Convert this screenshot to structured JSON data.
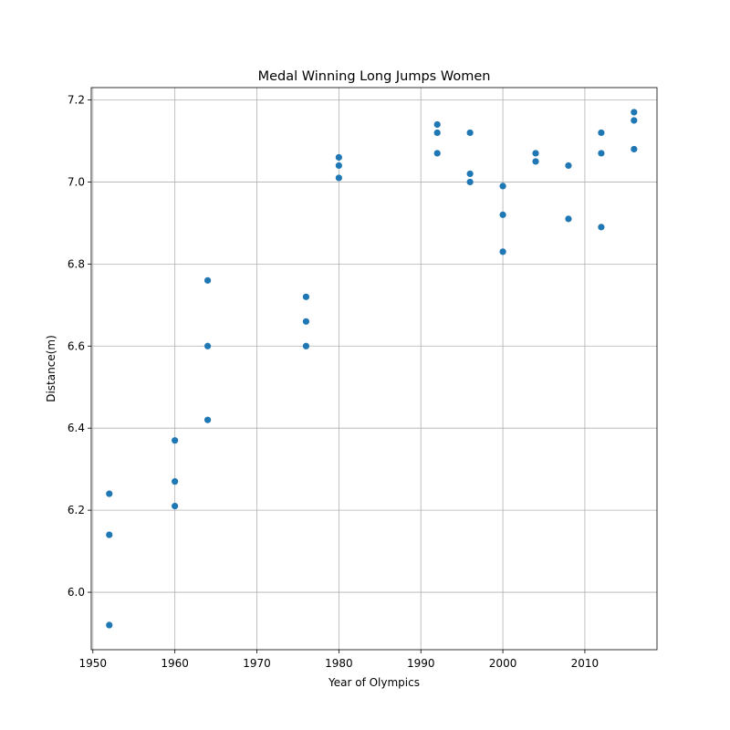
{
  "chart_data": {
    "type": "scatter",
    "title": "Medal Winning Long Jumps Women",
    "xlabel": "Year of Olympics",
    "ylabel": "Distance(m)",
    "xlim": [
      1949.8,
      2018.8
    ],
    "ylim": [
      5.86,
      7.23
    ],
    "xticks": [
      1950,
      1960,
      1970,
      1980,
      1990,
      2000,
      2010
    ],
    "yticks": [
      6.0,
      6.2,
      6.4,
      6.6,
      6.8,
      7.0,
      7.2
    ],
    "grid": true,
    "marker_color": "#1f77b4",
    "points": [
      {
        "x": 1952,
        "y": 6.24
      },
      {
        "x": 1952,
        "y": 6.14
      },
      {
        "x": 1952,
        "y": 5.92
      },
      {
        "x": 1960,
        "y": 6.37
      },
      {
        "x": 1960,
        "y": 6.27
      },
      {
        "x": 1960,
        "y": 6.21
      },
      {
        "x": 1964,
        "y": 6.76
      },
      {
        "x": 1964,
        "y": 6.6
      },
      {
        "x": 1964,
        "y": 6.42
      },
      {
        "x": 1976,
        "y": 6.72
      },
      {
        "x": 1976,
        "y": 6.66
      },
      {
        "x": 1976,
        "y": 6.6
      },
      {
        "x": 1980,
        "y": 7.06
      },
      {
        "x": 1980,
        "y": 7.04
      },
      {
        "x": 1980,
        "y": 7.01
      },
      {
        "x": 1992,
        "y": 7.14
      },
      {
        "x": 1992,
        "y": 7.12
      },
      {
        "x": 1992,
        "y": 7.07
      },
      {
        "x": 1996,
        "y": 7.12
      },
      {
        "x": 1996,
        "y": 7.02
      },
      {
        "x": 1996,
        "y": 7.0
      },
      {
        "x": 2000,
        "y": 6.99
      },
      {
        "x": 2000,
        "y": 6.92
      },
      {
        "x": 2000,
        "y": 6.83
      },
      {
        "x": 2004,
        "y": 7.07
      },
      {
        "x": 2004,
        "y": 7.05
      },
      {
        "x": 2008,
        "y": 7.04
      },
      {
        "x": 2008,
        "y": 6.91
      },
      {
        "x": 2012,
        "y": 7.12
      },
      {
        "x": 2012,
        "y": 7.07
      },
      {
        "x": 2012,
        "y": 6.89
      },
      {
        "x": 2016,
        "y": 7.17
      },
      {
        "x": 2016,
        "y": 7.15
      },
      {
        "x": 2016,
        "y": 7.08
      }
    ]
  }
}
